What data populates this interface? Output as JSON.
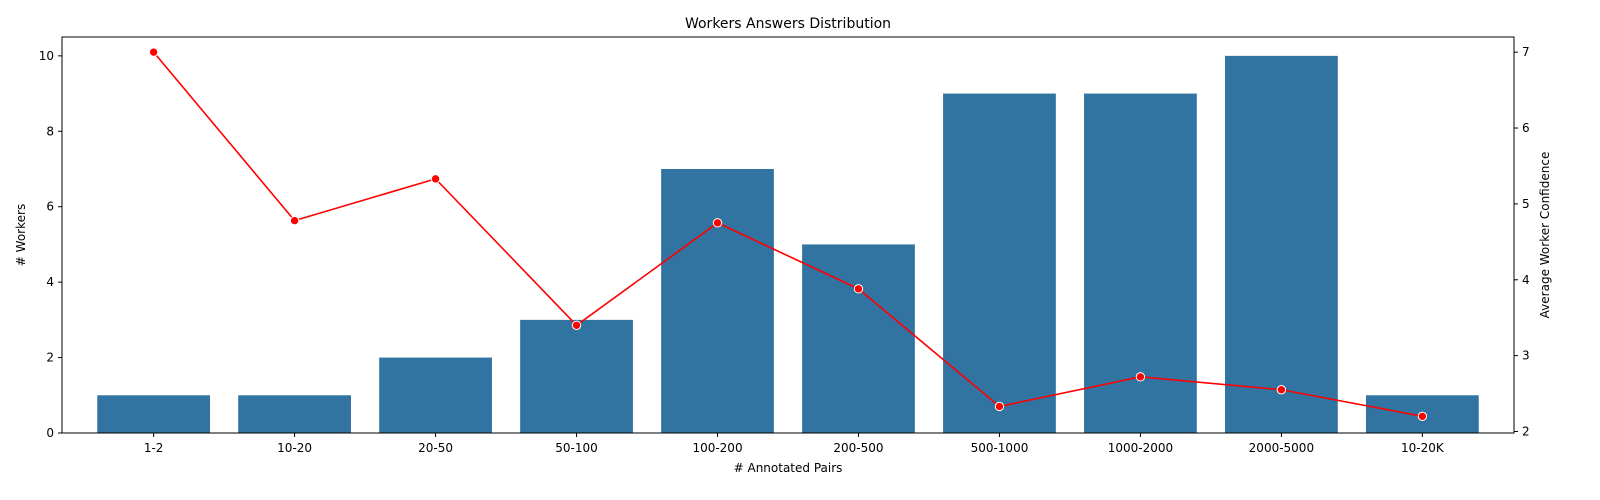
{
  "chart_data": {
    "type": "bar",
    "title": "Workers Answers Distribution",
    "xlabel": "# Annotated Pairs",
    "ylabel": "# Workers",
    "y2label": "Average Worker Confidence",
    "categories": [
      "1-2",
      "10-20",
      "20-50",
      "50-100",
      "100-200",
      "200-500",
      "500-1000",
      "1000-2000",
      "2000-5000",
      "10-20K"
    ],
    "series": [
      {
        "values": [
          1,
          1,
          2,
          3,
          7,
          5,
          9,
          9,
          10,
          1
        ],
        "axis": "left",
        "kind": "bar",
        "color": "#3274a1"
      },
      {
        "values": [
          7.0,
          4.78,
          5.33,
          3.4,
          4.75,
          3.88,
          2.33,
          2.72,
          2.55,
          2.2
        ],
        "axis": "right",
        "kind": "line",
        "color": "#ff0000"
      }
    ],
    "ylim": [
      0,
      10.5
    ],
    "y2lim": [
      1.98,
      7.2
    ],
    "yticks": [
      "0",
      "2",
      "4",
      "6",
      "8",
      "10"
    ],
    "y2ticks": [
      "2",
      "3",
      "4",
      "5",
      "6",
      "7"
    ],
    "grid": false,
    "legend": "none"
  }
}
